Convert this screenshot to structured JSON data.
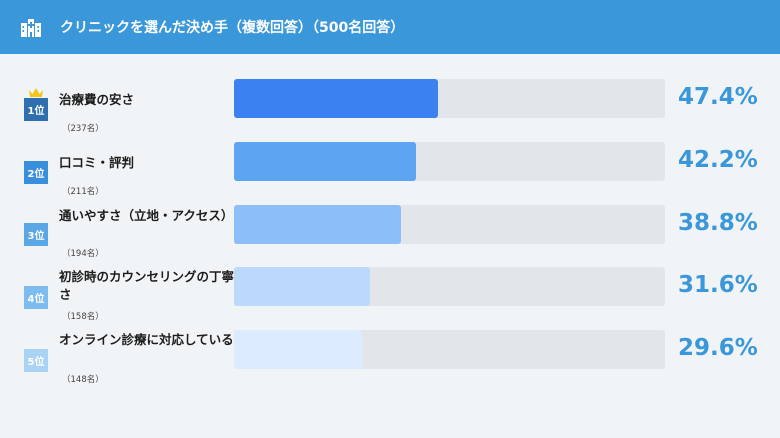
{
  "header": {
    "title": "クリニックを選んだ決め手（複数回答）（500名回答）"
  },
  "chart_data": {
    "type": "bar",
    "orientation": "horizontal",
    "xlim": [
      0,
      100
    ],
    "items": [
      {
        "rank": "1位",
        "label": "治療費の安さ",
        "count": "（237名）",
        "value": 47.4,
        "value_label": "47.4%",
        "color": "#3b82f0",
        "rank_color": "#2f6fae"
      },
      {
        "rank": "2位",
        "label": "口コミ・評判",
        "count": "（211名）",
        "value": 42.2,
        "value_label": "42.2%",
        "color": "#5da5f3",
        "rank_color": "#3a8fdc"
      },
      {
        "rank": "3位",
        "label": "通いやすさ（立地・アクセス）",
        "count": "（194名）",
        "value": 38.8,
        "value_label": "38.8%",
        "color": "#8cbff7",
        "rank_color": "#5aa7e6"
      },
      {
        "rank": "4位",
        "label": "初診時のカウンセリングの丁寧さ",
        "count": "（158名）",
        "value": 31.6,
        "value_label": "31.6%",
        "color": "#bcd9fb",
        "rank_color": "#7dbcee"
      },
      {
        "rank": "5位",
        "label": "オンライン診療に対応している",
        "count": "（148名）",
        "value": 29.6,
        "value_label": "29.6%",
        "color": "#dcebfd",
        "rank_color": "#a9d2f3"
      }
    ]
  }
}
